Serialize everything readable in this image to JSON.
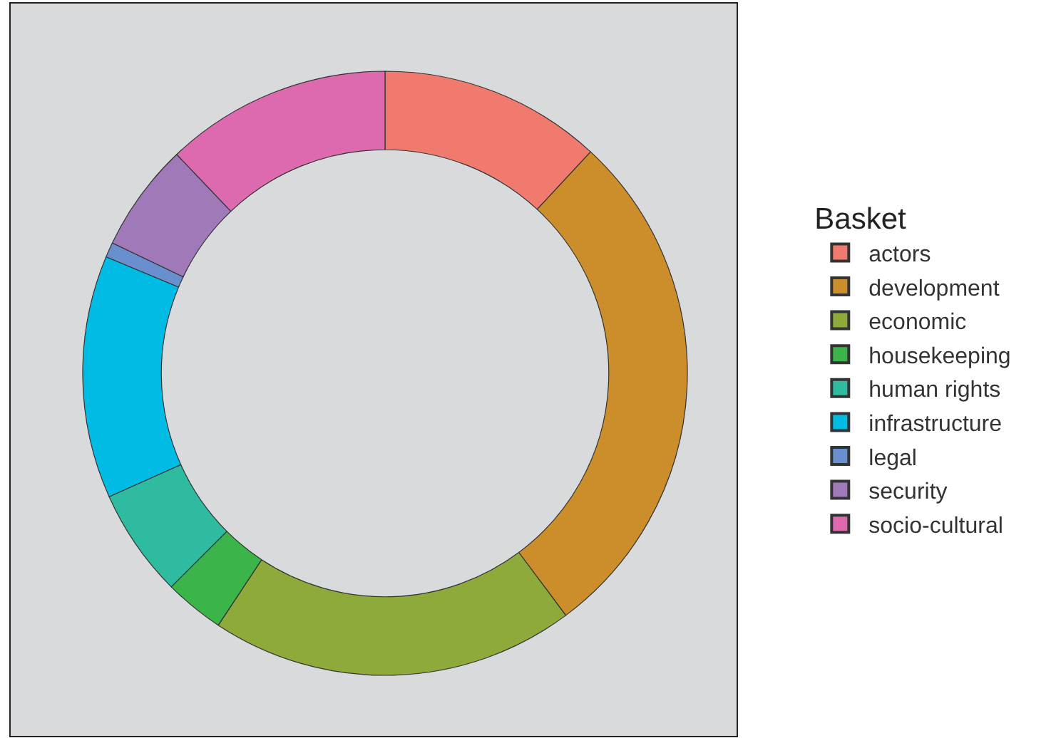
{
  "chart_data": {
    "type": "donut",
    "legend_title": "Basket",
    "categories": [
      "actors",
      "development",
      "economic",
      "housekeeping",
      "human rights",
      "infrastructure",
      "legal",
      "security",
      "socio-cultural"
    ],
    "values": [
      11.9,
      27.9,
      19.5,
      3.2,
      5.8,
      13.0,
      0.8,
      5.8,
      12.1
    ],
    "colors": [
      "#f07a6e",
      "#cc8e2a",
      "#8daa3a",
      "#3bb54a",
      "#2ebba0",
      "#00bce4",
      "#6a8fcf",
      "#a07ab8",
      "#dd6aaf"
    ],
    "legend": "right"
  }
}
